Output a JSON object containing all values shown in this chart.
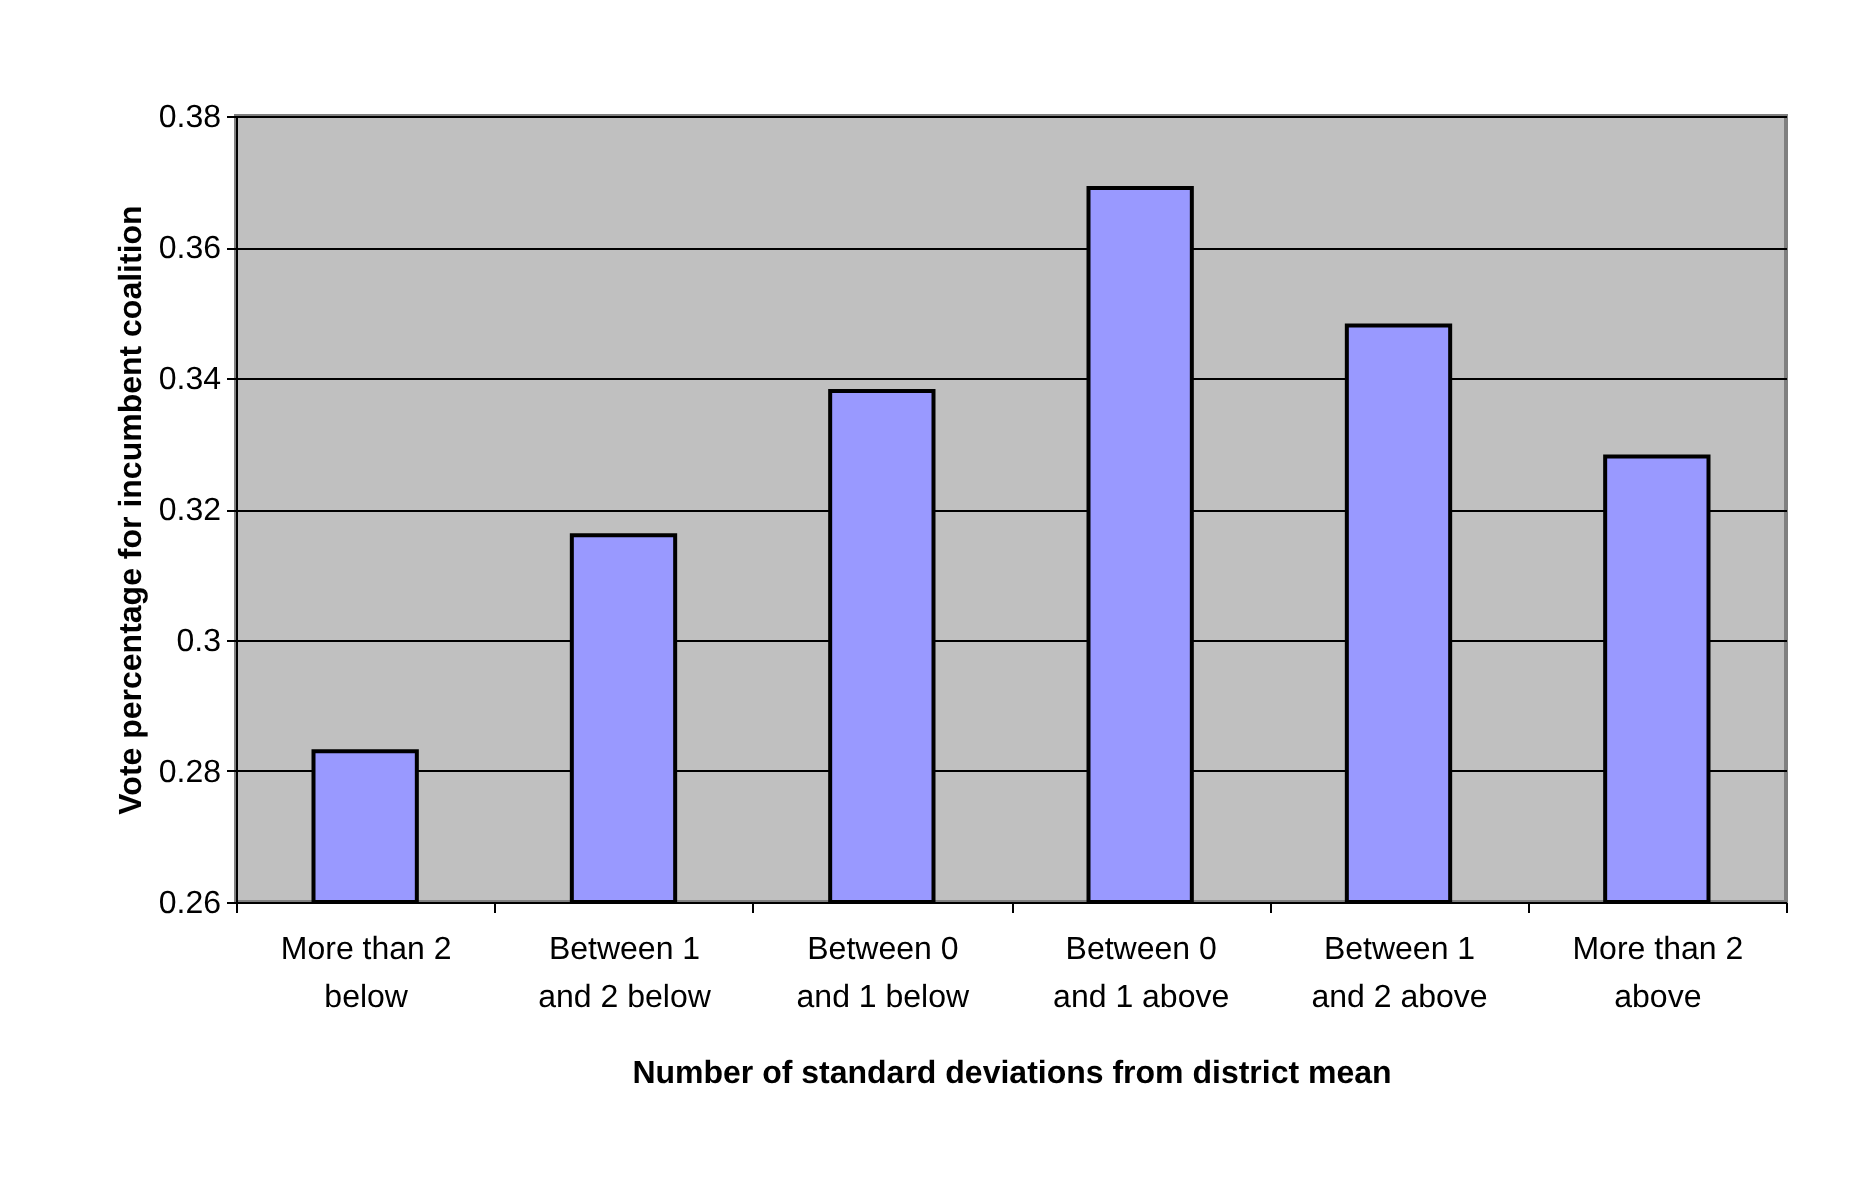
{
  "chart_data": {
    "type": "bar",
    "xlabel": "Number of standard deviations from district mean",
    "ylabel": "Vote percentage for incumbent coalition",
    "categories": [
      "More than 2 below",
      "Between 1 and 2 below",
      "Between 0 and 1 below",
      "Between 0 and 1 above",
      "Between 1 and 2 above",
      "More than 2 above"
    ],
    "values": [
      0.283,
      0.316,
      0.338,
      0.369,
      0.348,
      0.328
    ],
    "color": "#9999ff",
    "ylim": [
      0.26,
      0.38
    ],
    "yticks": [
      0.26,
      0.28,
      0.3,
      0.32,
      0.34,
      0.36,
      0.38
    ],
    "grid": "y"
  }
}
